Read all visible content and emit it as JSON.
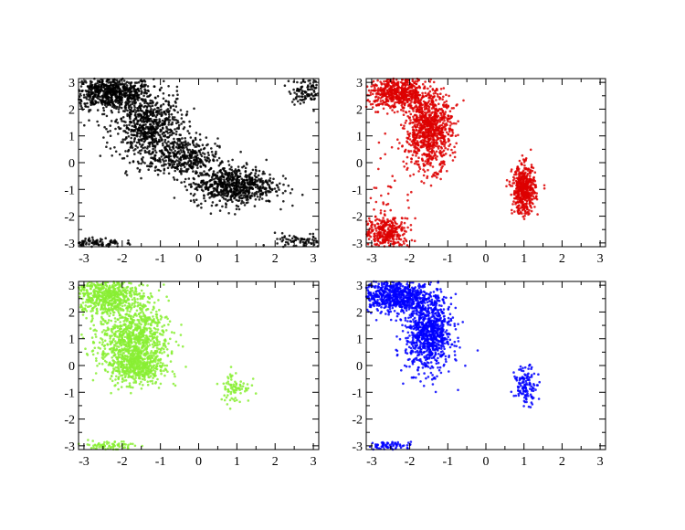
{
  "chart_data": [
    {
      "type": "scatter",
      "panel": "top-left",
      "color": "#000000",
      "xlim": [
        -3.1416,
        3.1416
      ],
      "ylim": [
        -3.1416,
        3.1416
      ],
      "xticks": [
        "-3",
        "-2",
        "-1",
        "0",
        "1",
        "2",
        "3"
      ],
      "yticks": [
        "-3",
        "-2",
        "-1",
        "0",
        "1",
        "2",
        "3"
      ],
      "grid": false,
      "clusters": [
        {
          "cx": -2.3,
          "cy": 2.6,
          "sx": 0.55,
          "sy": 0.3,
          "n": 700
        },
        {
          "cx": -1.3,
          "cy": 1.3,
          "sx": 0.45,
          "sy": 0.6,
          "n": 700
        },
        {
          "cx": -0.4,
          "cy": 0.2,
          "sx": 0.45,
          "sy": 0.35,
          "n": 350
        },
        {
          "cx": 0.9,
          "cy": -0.85,
          "sx": 0.55,
          "sy": 0.35,
          "n": 700
        },
        {
          "cx": 2.85,
          "cy": 2.7,
          "sx": 0.25,
          "sy": 0.25,
          "n": 120
        },
        {
          "cx": -2.7,
          "cy": -3.0,
          "sx": 0.35,
          "sy": 0.1,
          "n": 90
        },
        {
          "cx": 2.7,
          "cy": -2.95,
          "sx": 0.35,
          "sy": 0.15,
          "n": 90
        }
      ]
    },
    {
      "type": "scatter",
      "panel": "top-right",
      "color": "#dd0000",
      "xlim": [
        -3.1416,
        3.1416
      ],
      "ylim": [
        -3.1416,
        3.1416
      ],
      "xticks": [
        "-3",
        "-2",
        "-1",
        "0",
        "1",
        "2",
        "3"
      ],
      "yticks": [
        "-3",
        "-2",
        "-1",
        "0",
        "1",
        "2",
        "3"
      ],
      "grid": false,
      "clusters": [
        {
          "cx": -2.3,
          "cy": 2.6,
          "sx": 0.4,
          "sy": 0.3,
          "n": 600
        },
        {
          "cx": -1.5,
          "cy": 1.2,
          "sx": 0.3,
          "sy": 0.7,
          "n": 900
        },
        {
          "cx": -2.6,
          "cy": -2.6,
          "sx": 0.3,
          "sy": 0.3,
          "n": 350
        },
        {
          "cx": -2.5,
          "cy": -0.5,
          "sx": 0.35,
          "sy": 1.0,
          "n": 40
        },
        {
          "cx": 1.0,
          "cy": -1.0,
          "sx": 0.15,
          "sy": 0.45,
          "n": 500
        }
      ]
    },
    {
      "type": "scatter",
      "panel": "bottom-left",
      "color": "#88ee33",
      "xlim": [
        -3.1416,
        3.1416
      ],
      "ylim": [
        -3.1416,
        3.1416
      ],
      "xticks": [
        "-3",
        "-2",
        "-1",
        "0",
        "1",
        "2",
        "3"
      ],
      "yticks": [
        "-3",
        "-2",
        "-1",
        "0",
        "1",
        "2",
        "3"
      ],
      "grid": false,
      "clusters": [
        {
          "cx": -2.4,
          "cy": 2.6,
          "sx": 0.45,
          "sy": 0.35,
          "n": 600
        },
        {
          "cx": -1.7,
          "cy": 0.9,
          "sx": 0.45,
          "sy": 0.7,
          "n": 1000
        },
        {
          "cx": -1.6,
          "cy": -0.1,
          "sx": 0.35,
          "sy": 0.3,
          "n": 300
        },
        {
          "cx": 0.95,
          "cy": -0.8,
          "sx": 0.2,
          "sy": 0.3,
          "n": 80
        },
        {
          "cx": -2.4,
          "cy": -3.0,
          "sx": 0.35,
          "sy": 0.1,
          "n": 80
        }
      ]
    },
    {
      "type": "scatter",
      "panel": "bottom-right",
      "color": "#0000ff",
      "xlim": [
        -3.1416,
        3.1416
      ],
      "ylim": [
        -3.1416,
        3.1416
      ],
      "xticks": [
        "-3",
        "-2",
        "-1",
        "0",
        "1",
        "2",
        "3"
      ],
      "yticks": [
        "-3",
        "-2",
        "-1",
        "0",
        "1",
        "2",
        "3"
      ],
      "grid": false,
      "clusters": [
        {
          "cx": -2.4,
          "cy": 2.6,
          "sx": 0.45,
          "sy": 0.3,
          "n": 700
        },
        {
          "cx": -1.5,
          "cy": 1.2,
          "sx": 0.3,
          "sy": 0.7,
          "n": 900
        },
        {
          "cx": 1.05,
          "cy": -0.75,
          "sx": 0.15,
          "sy": 0.35,
          "n": 130
        },
        {
          "cx": -2.5,
          "cy": -3.0,
          "sx": 0.3,
          "sy": 0.08,
          "n": 70
        }
      ]
    }
  ]
}
